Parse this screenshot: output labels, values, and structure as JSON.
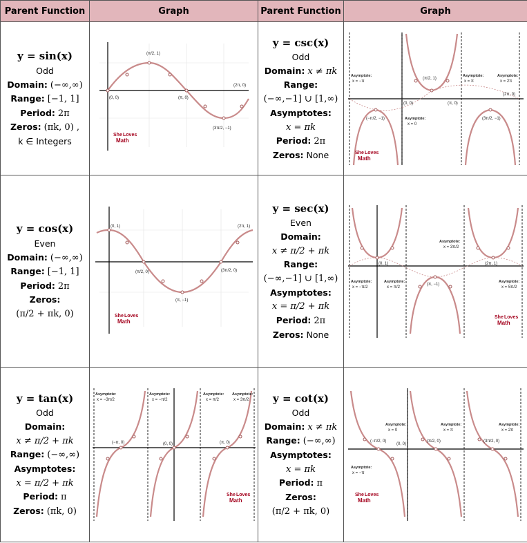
{
  "headers": [
    "Parent Function",
    "Graph",
    "Parent Function",
    "Graph"
  ],
  "rows": [
    {
      "left": {
        "fn": "y = sin(x)",
        "parity": "Odd",
        "domain_label": "Domain:",
        "domain": "(−∞,∞)",
        "range_label": "Range:",
        "range": "[−1, 1]",
        "period_label": "Period:",
        "period": "2π",
        "zeros_label": "Zeros:",
        "zeros": "(πk, 0) ,",
        "zeros_note": "k ∈ Integers"
      },
      "right": {
        "fn": "y = csc(x)",
        "parity": "Odd",
        "domain_label": "Domain:",
        "domain": "x ≠ πk",
        "range_label": "Range:",
        "range": "(−∞,−1] ∪ [1,∞)",
        "asym_label": "Asymptotes:",
        "asym": "x = πk",
        "period_label": "Period:",
        "period": "2π",
        "zeros_label": "Zeros:",
        "zeros": "None"
      }
    },
    {
      "left": {
        "fn": "y = cos(x)",
        "parity": "Even",
        "domain_label": "Domain:",
        "domain": "(−∞,∞)",
        "range_label": "Range:",
        "range": "[−1, 1]",
        "period_label": "Period:",
        "period": "2π",
        "zeros_label": "Zeros:",
        "zeros": "(π/2 + πk, 0)"
      },
      "right": {
        "fn": "y = sec(x)",
        "parity": "Even",
        "domain_label": "Domain:",
        "domain": "x ≠ π/2 + πk",
        "range_label": "Range:",
        "range": "(−∞,−1] ∪ [1,∞)",
        "asym_label": "Asymptotes:",
        "asym": "x = π/2 + πk",
        "period_label": "Period:",
        "period": "2π",
        "zeros_label": "Zeros:",
        "zeros": "None"
      }
    },
    {
      "left": {
        "fn": "y = tan(x)",
        "parity": "Odd",
        "domain_label": "Domain:",
        "domain": "x ≠ π/2 + πk",
        "range_label": "Range:",
        "range": "(−∞,∞)",
        "asym_label": "Asymptotes:",
        "asym": "x = π/2 + πk",
        "period_label": "Period:",
        "period": "π",
        "zeros_label": "Zeros:",
        "zeros": "(πk, 0)"
      },
      "right": {
        "fn": "y = cot(x)",
        "parity": "Odd",
        "domain_label": "Domain:",
        "domain": "x ≠ πk",
        "range_label": "Range:",
        "range": "(−∞,∞)",
        "asym_label": "Asymptotes:",
        "asym": "x = πk",
        "period_label": "Period:",
        "period": "π",
        "zeros_label": "Zeros:",
        "zeros": "(π/2 + πk, 0)"
      }
    }
  ],
  "graphs": {
    "sin": {
      "points": [
        "(π/2, 1)",
        "(0, 0)",
        "(π, 0)",
        "(2π, 0)",
        "(3π/2, −1)"
      ]
    },
    "cos": {
      "points": [
        "(0, 1)",
        "(2π, 1)",
        "(π/2, 0)",
        "(3π/2, 0)",
        "(π, −1)"
      ]
    },
    "csc": {
      "points": [
        "(π/2, 1)",
        "(0, 0)",
        "(π, 0)",
        "(2π, 0)",
        "(−π/2, −1)",
        "(3π/2, −1)"
      ],
      "asymptotes": [
        {
          "title": "Asymptote:",
          "eq": "x = −π"
        },
        {
          "title": "Asymptote:",
          "eq": "x = π"
        },
        {
          "title": "Asymptote:",
          "eq": "x = 2π"
        },
        {
          "title": "Asymptote:",
          "eq": "x = 0"
        }
      ]
    },
    "sec": {
      "points": [
        "(0, 1)",
        "(2π, 1)",
        "(π, −1)"
      ],
      "asymptotes": [
        {
          "title": "Asymptote:",
          "eq": "x = 3π/2"
        },
        {
          "title": "Asymptote:",
          "eq": "x = −π/2"
        },
        {
          "title": "Asymptote:",
          "eq": "x = π/2"
        },
        {
          "title": "Asymptote:",
          "eq": "x = 5π/2"
        }
      ]
    },
    "tan": {
      "points": [
        "(−π, 0)",
        "(0, 0)",
        "(π, 0)"
      ],
      "asymptotes": [
        {
          "title": "Asymptote:",
          "eq": "x = −3π/2"
        },
        {
          "title": "Asymptote:",
          "eq": "x = −π/2"
        },
        {
          "title": "Asymptote:",
          "eq": "x = π/2"
        },
        {
          "title": "Asymptote:",
          "eq": "x = 3π/2"
        }
      ]
    },
    "cot": {
      "points": [
        "(−π/2, 0)",
        "(π/2, 0)",
        "(3π/2, 0)",
        "(0, 0)"
      ],
      "asymptotes": [
        {
          "title": "Asymptote:",
          "eq": "x = 0"
        },
        {
          "title": "Asymptote:",
          "eq": "x = π"
        },
        {
          "title": "Asymptote:",
          "eq": "x = 2π"
        },
        {
          "title": "Asymptote:",
          "eq": "x = −π"
        }
      ]
    }
  },
  "logo": {
    "top": "She",
    "mid": "Loves",
    "bottom": "Math"
  },
  "colors": {
    "header_bg": "#e2b6bb",
    "curve": "#c98b8b",
    "logo": "#a3001c"
  }
}
